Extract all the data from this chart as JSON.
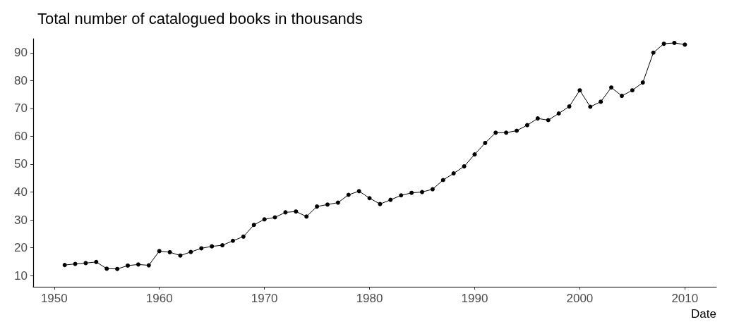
{
  "chart_data": {
    "type": "line",
    "title": "Total number of catalogued books in thousands",
    "xlabel": "Date",
    "x": [
      1951,
      1952,
      1953,
      1954,
      1955,
      1956,
      1957,
      1958,
      1959,
      1960,
      1961,
      1962,
      1963,
      1964,
      1965,
      1966,
      1967,
      1968,
      1969,
      1970,
      1971,
      1972,
      1973,
      1974,
      1975,
      1976,
      1977,
      1978,
      1979,
      1980,
      1981,
      1982,
      1983,
      1984,
      1985,
      1986,
      1987,
      1988,
      1989,
      1990,
      1991,
      1992,
      1993,
      1994,
      1995,
      1996,
      1997,
      1998,
      1999,
      2000,
      2001,
      2002,
      2003,
      2004,
      2005,
      2006,
      2007,
      2008,
      2009,
      2010
    ],
    "series": [
      {
        "color": "#000000",
        "values": [
          13.8,
          14.2,
          14.5,
          14.9,
          12.5,
          12.4,
          13.6,
          14.0,
          13.7,
          18.8,
          18.4,
          17.2,
          18.5,
          19.8,
          20.5,
          20.9,
          22.5,
          24.0,
          28.2,
          30.2,
          30.9,
          32.7,
          33.0,
          31.2,
          34.8,
          35.5,
          36.2,
          39.0,
          40.3,
          37.8,
          35.7,
          37.2,
          38.8,
          39.7,
          40.0,
          41.0,
          44.3,
          46.7,
          49.2,
          53.5,
          57.6,
          61.3,
          61.3,
          62.0,
          64.0,
          66.4,
          65.8,
          68.2,
          70.7,
          76.5,
          70.6,
          72.4,
          77.5,
          74.5,
          76.5,
          79.3,
          90.0,
          93.2,
          93.5,
          92.9
        ]
      }
    ],
    "xlim": [
      1948,
      2013
    ],
    "xticks": [
      1950,
      1960,
      1970,
      1980,
      1990,
      2000,
      2010
    ],
    "ylim": [
      6,
      95
    ],
    "yticks": [
      10,
      20,
      30,
      40,
      50,
      60,
      70,
      80,
      90
    ],
    "grid": false,
    "marker": "circle",
    "line_style": "solid"
  }
}
